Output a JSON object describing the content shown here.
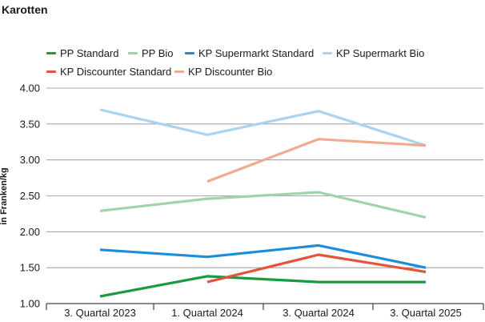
{
  "chart_data": {
    "type": "line",
    "title": "Karotten",
    "xlabel": "",
    "ylabel": "in Franken/kg",
    "categories": [
      "3. Quartal 2023",
      "1. Quartal 2024",
      "3. Quartal 2024",
      "3. Quartal 2025"
    ],
    "ylim": [
      1.0,
      4.0
    ],
    "yticks": [
      "4.00",
      "3.50",
      "3.00",
      "2.50",
      "2.00",
      "1.50",
      "1.00"
    ],
    "grid": "horizontal",
    "legend_position": "top-left",
    "series": [
      {
        "name": "PP Standard",
        "color": "#1a9a3e",
        "values": [
          1.1,
          1.38,
          1.3,
          1.3
        ]
      },
      {
        "name": "PP Bio",
        "color": "#9fd3a8",
        "values": [
          2.29,
          2.46,
          2.55,
          2.2
        ]
      },
      {
        "name": "KP Supermarkt Standard",
        "color": "#1c8ed9",
        "values": [
          1.75,
          1.65,
          1.81,
          1.5
        ]
      },
      {
        "name": "KP Supermarkt Bio",
        "color": "#a9d4f0",
        "values": [
          3.7,
          3.35,
          3.68,
          3.2
        ]
      },
      {
        "name": "KP Discounter Standard",
        "color": "#e5533a",
        "values": [
          null,
          1.3,
          1.68,
          1.44
        ]
      },
      {
        "name": "KP Discounter Bio",
        "color": "#f2a990",
        "values": [
          null,
          2.7,
          3.29,
          3.2
        ]
      }
    ]
  }
}
